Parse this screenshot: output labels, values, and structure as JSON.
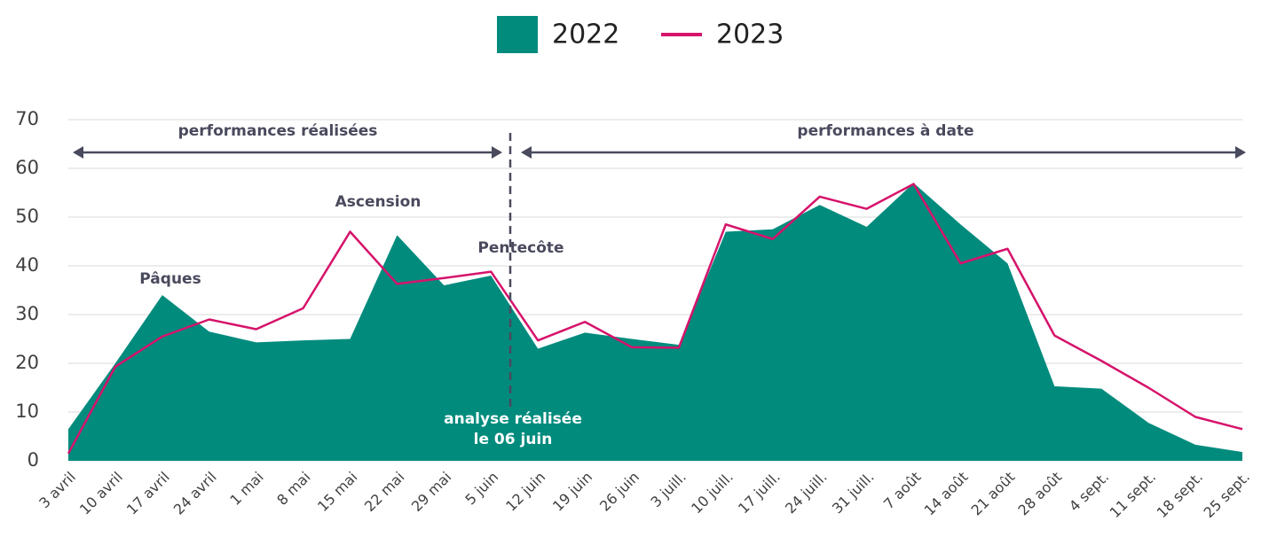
{
  "chart_data": {
    "type": "area-line",
    "categories": [
      "3 avril",
      "10 avril",
      "17 avril",
      "24 avril",
      "1 mai",
      "8 mai",
      "15 mai",
      "22 mai",
      "29 mai",
      "5 juin",
      "12 juin",
      "19 juin",
      "26 juin",
      "3 juill.",
      "10 juill.",
      "17 juill.",
      "24 juill.",
      "31 juill.",
      "7 août",
      "14 août",
      "21 août",
      "28 août",
      "4 sept.",
      "11 sept.",
      "18 sept.",
      "25 sept."
    ],
    "series": [
      {
        "name": "2022",
        "color": "#008b7d",
        "style": "area",
        "values": [
          6.5,
          20,
          34,
          26.5,
          24.3,
          24.7,
          25,
          46.3,
          36,
          38,
          23,
          26.3,
          25,
          23.8,
          47,
          47.5,
          52.5,
          48,
          57,
          48.5,
          40.5,
          15.3,
          14.8,
          7.8,
          3.3,
          1.8
        ]
      },
      {
        "name": "2023",
        "color": "#d6136b",
        "style": "line",
        "values": [
          1.5,
          19.3,
          25.5,
          29,
          27,
          31.3,
          47,
          36.3,
          37.5,
          38.8,
          24.7,
          28.5,
          23.3,
          23.2,
          48.5,
          45.5,
          54.2,
          51.7,
          56.8,
          40.5,
          43.5,
          25.7,
          20.5,
          15,
          9,
          6.5
        ]
      }
    ],
    "ylim": [
      0,
      70
    ],
    "yticks": [
      0,
      10,
      20,
      30,
      40,
      50,
      60,
      70
    ],
    "grid": true,
    "annotations": [
      "performances réalisées",
      "performances à date",
      "Pâques",
      "Ascension",
      "Pentecôte",
      "analyse réalisée",
      "le 06 juin"
    ]
  }
}
